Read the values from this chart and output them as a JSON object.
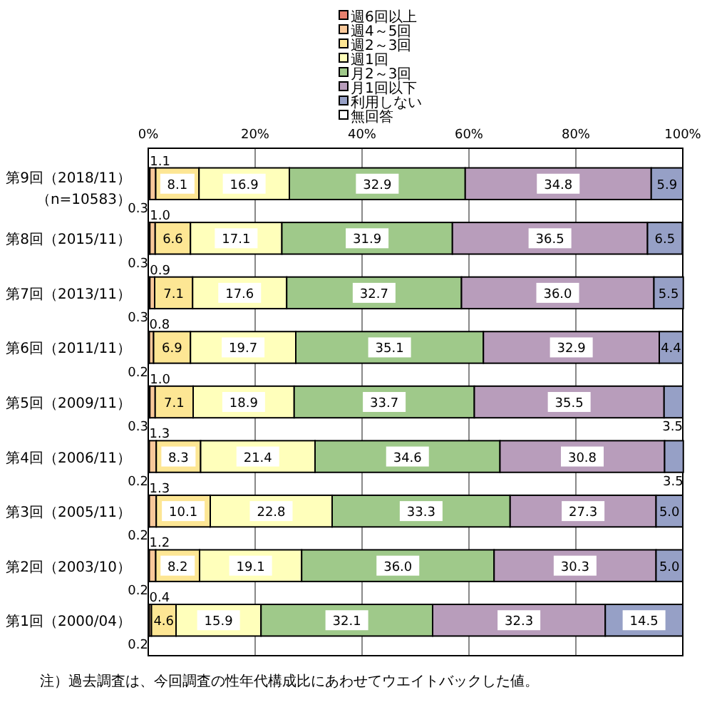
{
  "chart_data": {
    "type": "bar",
    "orientation": "horizontal",
    "stacked": true,
    "grid": "x",
    "legend": "top",
    "categories": [
      "第9回（2018/11）（n=10583）",
      "第8回（2015/11）",
      "第7回（2013/11）",
      "第6回（2011/11）",
      "第5回（2009/11）",
      "第4回（2006/11）",
      "第3回（2005/11）",
      "第2回（2003/10）",
      "第1回（2000/04）"
    ],
    "series": [
      {
        "name": "週6回以上",
        "color": "#e8806e",
        "values": [
          0.3,
          0.3,
          0.3,
          0.2,
          0.3,
          0.2,
          0.2,
          0.2,
          0.2
        ],
        "value_labels": [
          "0.3",
          "0.3",
          "0.3",
          "0.2",
          "0.3",
          "0.2",
          "0.2",
          "0.2",
          "0.2"
        ]
      },
      {
        "name": "週4～5回",
        "color": "#f8c89a",
        "values": [
          1.1,
          1.0,
          0.9,
          0.8,
          1.0,
          1.3,
          1.3,
          1.2,
          0.4
        ],
        "value_labels": [
          "1.1",
          "1.0",
          "0.9",
          "0.8",
          "1.0",
          "1.3",
          "1.3",
          "1.2",
          "0.4"
        ]
      },
      {
        "name": "週2～3回",
        "color": "#fde694",
        "values": [
          8.1,
          6.6,
          7.1,
          6.9,
          7.1,
          8.3,
          10.1,
          8.2,
          4.6
        ],
        "value_labels": [
          "8.1",
          "6.6",
          "7.1",
          "6.9",
          "7.1",
          "8.3",
          "10.1",
          "8.2",
          "4.6"
        ]
      },
      {
        "name": "週1回",
        "color": "#ffffbb",
        "values": [
          16.9,
          17.1,
          17.6,
          19.7,
          18.9,
          21.4,
          22.8,
          19.1,
          15.9
        ],
        "value_labels": [
          "16.9",
          "17.1",
          "17.6",
          "19.7",
          "18.9",
          "21.4",
          "22.8",
          "19.1",
          "15.9"
        ]
      },
      {
        "name": "月2～3回",
        "color": "#9fc98a",
        "values": [
          32.9,
          31.9,
          32.7,
          35.1,
          33.7,
          34.6,
          33.3,
          36.0,
          32.1
        ],
        "value_labels": [
          "32.9",
          "31.9",
          "32.7",
          "35.1",
          "33.7",
          "34.6",
          "33.3",
          "36.0",
          "32.1"
        ]
      },
      {
        "name": "月1回以下",
        "color": "#b89dbb",
        "values": [
          34.8,
          36.5,
          36.0,
          32.9,
          35.5,
          30.8,
          27.3,
          30.3,
          32.3
        ],
        "value_labels": [
          "34.8",
          "36.5",
          "36.0",
          "32.9",
          "35.5",
          "30.8",
          "27.3",
          "30.3",
          "32.3"
        ]
      },
      {
        "name": "利用しない",
        "color": "#96a0c6",
        "values": [
          5.9,
          6.5,
          5.5,
          4.4,
          3.5,
          3.5,
          5.0,
          5.0,
          14.5
        ],
        "value_labels": [
          "5.9",
          "6.5",
          "5.5",
          "4.4",
          "3.5",
          "3.5",
          "5.0",
          "5.0",
          "14.5"
        ]
      },
      {
        "name": "無回答",
        "color": "#ffffff",
        "values": [
          null,
          null,
          null,
          null,
          null,
          null,
          null,
          null,
          null
        ]
      }
    ],
    "xlim": [
      0,
      100
    ],
    "xticks": [
      {
        "value": 0,
        "label": "0%"
      },
      {
        "value": 20,
        "label": "20%"
      },
      {
        "value": 40,
        "label": "40%"
      },
      {
        "value": 60,
        "label": "60%"
      },
      {
        "value": 80,
        "label": "80%"
      },
      {
        "value": 100,
        "label": "100%"
      }
    ],
    "annotations": [
      "注）過去調査は、今回調査の性年代構成比にあわせてウエイトバックした値。"
    ]
  }
}
